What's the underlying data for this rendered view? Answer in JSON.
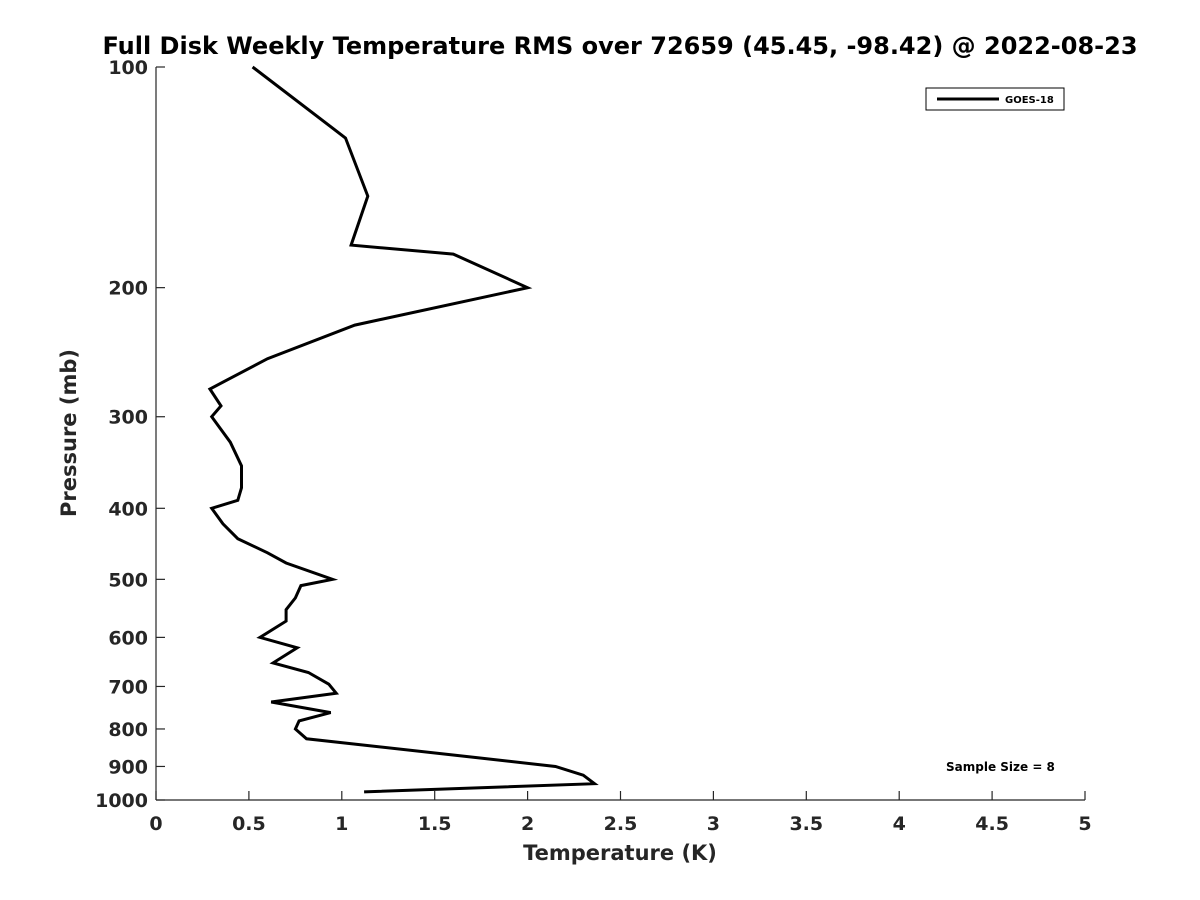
{
  "chart_data": {
    "type": "line",
    "title": "Full Disk Weekly Temperature RMS over 72659 (45.45, -98.42) @ 2022-08-23",
    "xlabel": "Temperature (K)",
    "ylabel": "Pressure (mb)",
    "xlim": [
      0,
      5
    ],
    "ylim": [
      100,
      1000
    ],
    "y_scale": "log",
    "y_reversed": true,
    "x_ticks": [
      "0",
      "0.5",
      "1",
      "1.5",
      "2",
      "2.5",
      "3",
      "3.5",
      "4",
      "4.5",
      "5"
    ],
    "y_ticks": [
      "100",
      "200",
      "300",
      "400",
      "500",
      "600",
      "700",
      "800",
      "900",
      "1000"
    ],
    "grid": false,
    "legend": {
      "position": "top-right",
      "entries": [
        "GOES-18"
      ]
    },
    "annotation": "Sample Size = 8",
    "series": [
      {
        "name": "GOES-18",
        "color": "#000000",
        "points": [
          [
            0.52,
            100
          ],
          [
            1.02,
            125
          ],
          [
            1.14,
            150
          ],
          [
            1.05,
            175
          ],
          [
            1.6,
            180
          ],
          [
            2.0,
            200
          ],
          [
            1.07,
            225
          ],
          [
            0.6,
            250
          ],
          [
            0.29,
            275
          ],
          [
            0.35,
            290
          ],
          [
            0.3,
            300
          ],
          [
            0.4,
            325
          ],
          [
            0.46,
            350
          ],
          [
            0.46,
            375
          ],
          [
            0.44,
            390
          ],
          [
            0.3,
            400
          ],
          [
            0.36,
            420
          ],
          [
            0.44,
            440
          ],
          [
            0.6,
            460
          ],
          [
            0.7,
            475
          ],
          [
            0.95,
            500
          ],
          [
            0.78,
            510
          ],
          [
            0.75,
            530
          ],
          [
            0.7,
            550
          ],
          [
            0.7,
            570
          ],
          [
            0.56,
            600
          ],
          [
            0.76,
            620
          ],
          [
            0.63,
            650
          ],
          [
            0.82,
            670
          ],
          [
            0.93,
            695
          ],
          [
            0.97,
            715
          ],
          [
            0.62,
            735
          ],
          [
            0.94,
            760
          ],
          [
            0.77,
            780
          ],
          [
            0.75,
            800
          ],
          [
            0.81,
            825
          ],
          [
            1.72,
            875
          ],
          [
            2.15,
            900
          ],
          [
            2.3,
            925
          ],
          [
            2.36,
            950
          ],
          [
            1.12,
            975
          ]
        ]
      }
    ]
  }
}
